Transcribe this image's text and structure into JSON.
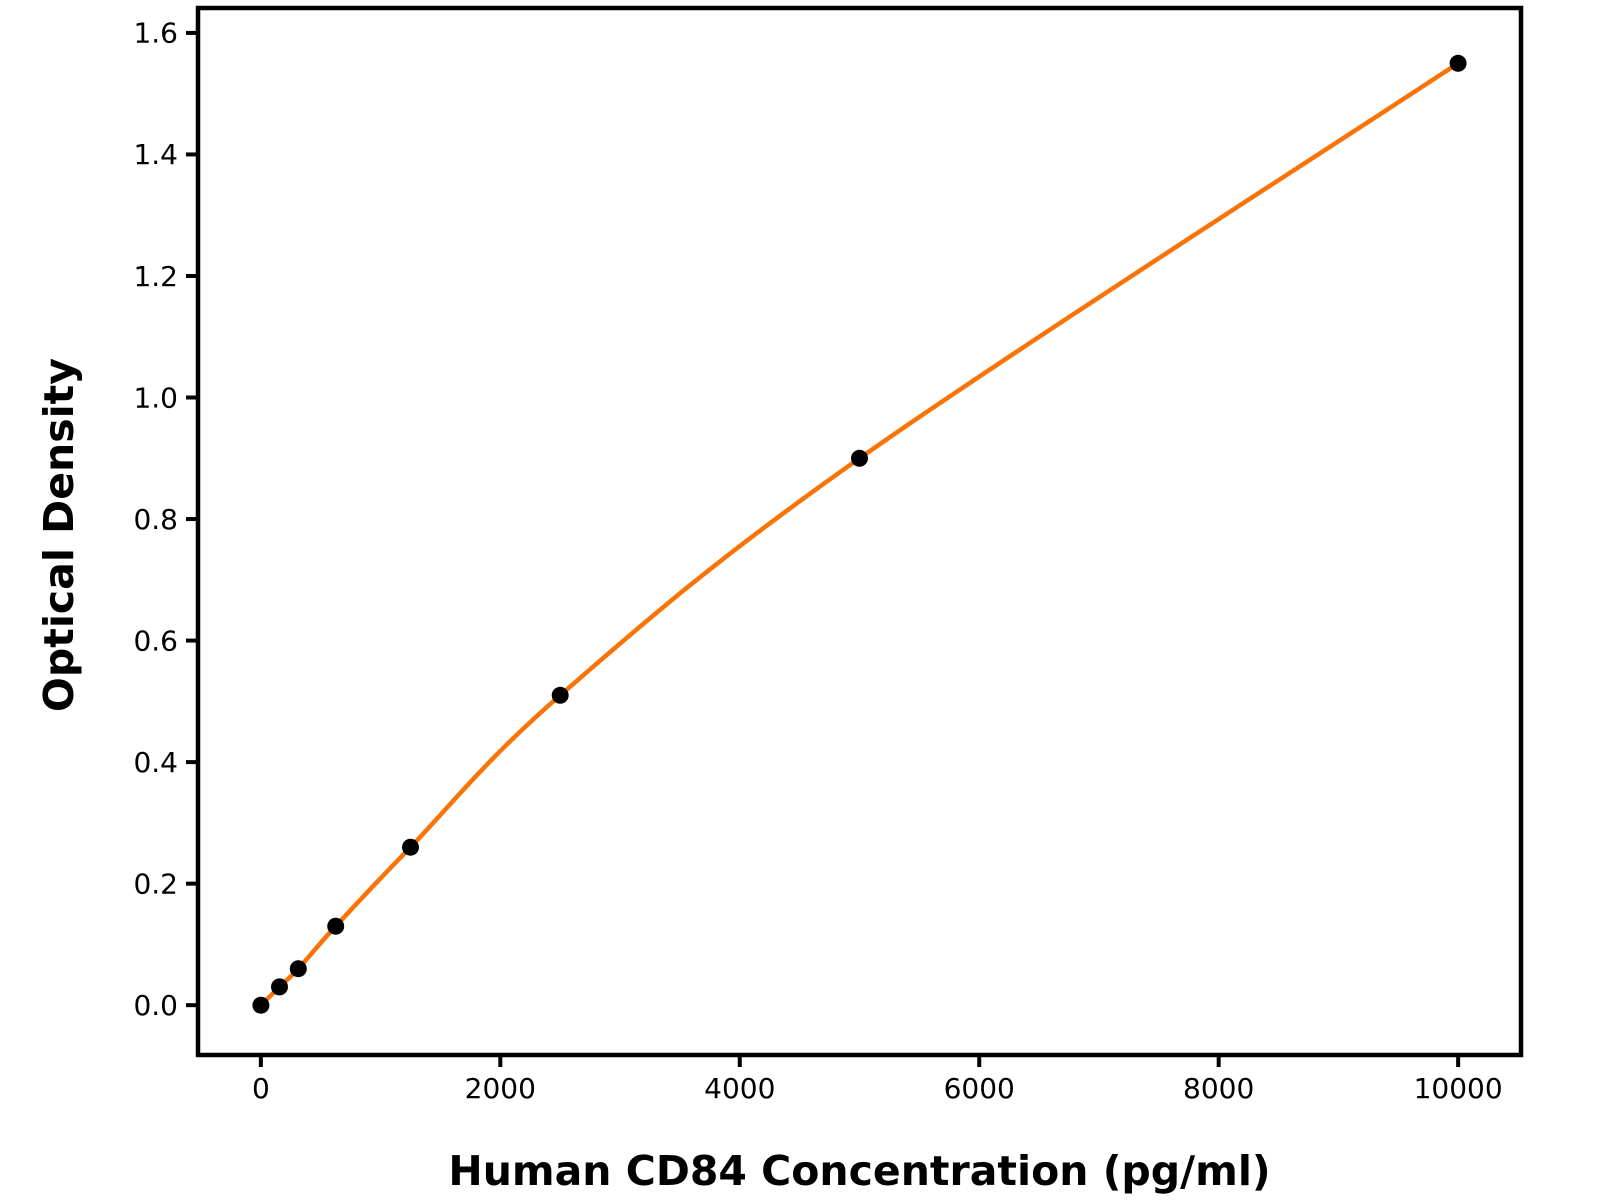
{
  "chart_data": {
    "type": "scatter",
    "title": "",
    "xlabel": "Human CD84 Concentration (pg/ml)",
    "ylabel": "Optical Density",
    "points": [
      {
        "x": 0,
        "y": 0.0
      },
      {
        "x": 156,
        "y": 0.03
      },
      {
        "x": 313,
        "y": 0.06
      },
      {
        "x": 625,
        "y": 0.13
      },
      {
        "x": 1250,
        "y": 0.26
      },
      {
        "x": 2500,
        "y": 0.51
      },
      {
        "x": 5000,
        "y": 0.9
      },
      {
        "x": 10000,
        "y": 1.55
      }
    ],
    "xticks": [
      {
        "value": 0,
        "label": "0"
      },
      {
        "value": 2000,
        "label": "2000"
      },
      {
        "value": 4000,
        "label": "4000"
      },
      {
        "value": 6000,
        "label": "6000"
      },
      {
        "value": 8000,
        "label": "8000"
      },
      {
        "value": 10000,
        "label": "10000"
      }
    ],
    "yticks": [
      {
        "value": 0.0,
        "label": "0.0"
      },
      {
        "value": 0.2,
        "label": "0.2"
      },
      {
        "value": 0.4,
        "label": "0.4"
      },
      {
        "value": 0.6,
        "label": "0.6"
      },
      {
        "value": 0.8,
        "label": "0.8"
      },
      {
        "value": 1.0,
        "label": "1.0"
      },
      {
        "value": 1.2,
        "label": "1.2"
      },
      {
        "value": 1.4,
        "label": "1.4"
      },
      {
        "value": 1.6,
        "label": "1.6"
      }
    ],
    "xlim": [
      -525,
      10525
    ],
    "ylim": [
      -0.082,
      1.641
    ],
    "grid": false,
    "legend": null,
    "line_style": "smooth curve through all points",
    "colors": {
      "curve": "#F97306",
      "marker": "#000000",
      "axis": "#000000",
      "background": "#ffffff"
    }
  }
}
